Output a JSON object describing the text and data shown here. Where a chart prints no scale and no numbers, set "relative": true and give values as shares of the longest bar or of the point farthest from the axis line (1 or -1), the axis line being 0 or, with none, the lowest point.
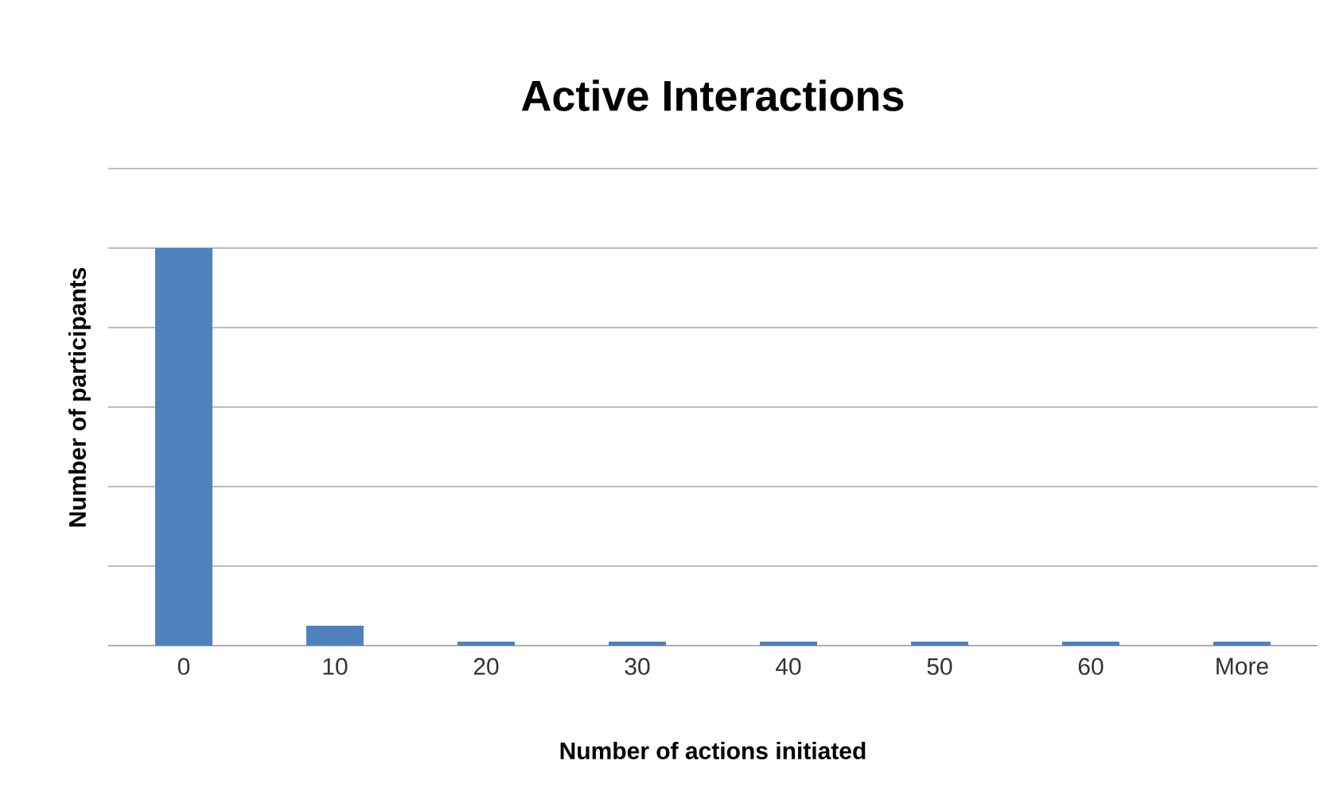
{
  "chart_data": {
    "type": "bar",
    "title": "Active Interactions",
    "xlabel": "Number of actions initiated",
    "ylabel": "Number of participants",
    "categories": [
      "0",
      "10",
      "20",
      "30",
      "40",
      "50",
      "60",
      "More"
    ],
    "values": [
      1,
      0.05,
      0.01,
      0.01,
      0.01,
      0.01,
      0.01,
      0.01
    ],
    "color": "#4f81bd",
    "relative": true,
    "grid": "y"
  }
}
